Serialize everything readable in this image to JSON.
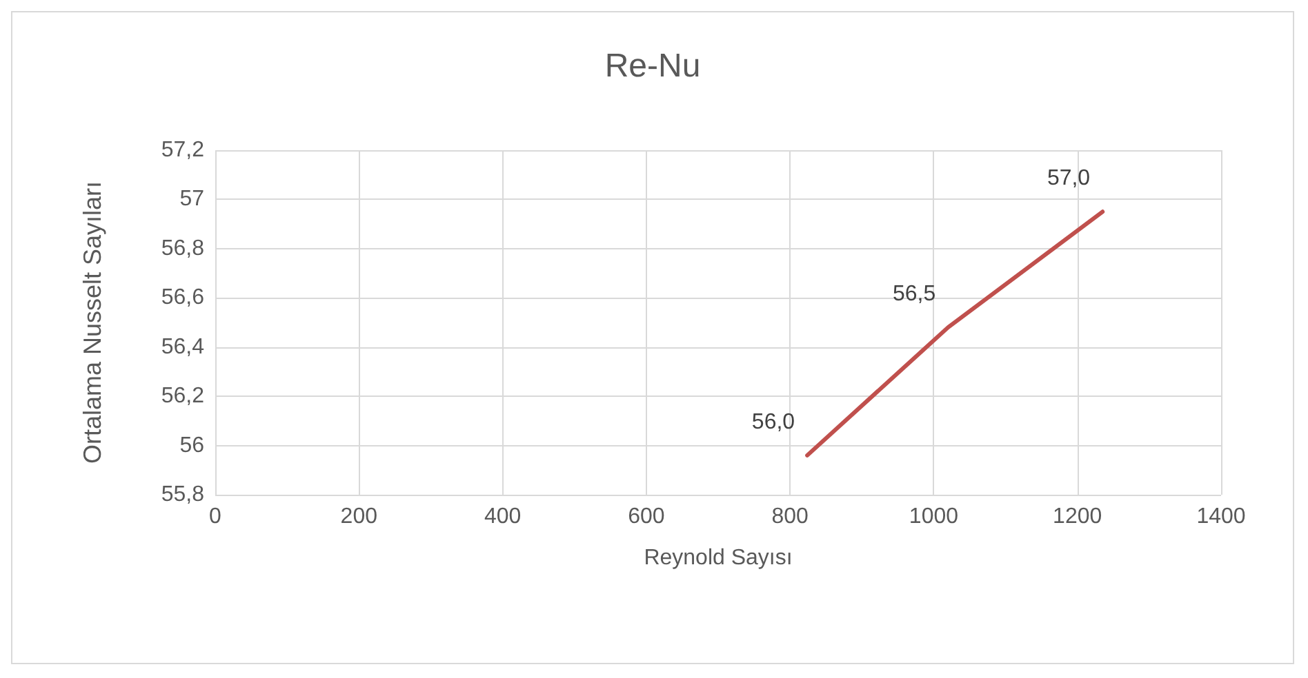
{
  "chart_data": {
    "type": "line",
    "title": "Re-Nu",
    "xlabel": "Reynold Sayısı",
    "ylabel": "Ortalama Nusselt Sayıları",
    "x": [
      824,
      1020,
      1235
    ],
    "series": [
      {
        "color": "#c0504d",
        "values": [
          55.96,
          56.48,
          56.95
        ],
        "value_labels": [
          "56,0",
          "56,5",
          "57,0"
        ]
      }
    ],
    "xlim": [
      0,
      1400
    ],
    "xticks": [
      0,
      200,
      400,
      600,
      800,
      1000,
      1200,
      1400
    ],
    "ylim": [
      55.8,
      57.2
    ],
    "yticks": [
      {
        "value": 55.8,
        "label": "55,8"
      },
      {
        "value": 56,
        "label": "56"
      },
      {
        "value": 56.2,
        "label": "56,2"
      },
      {
        "value": 56.4,
        "label": "56,4"
      },
      {
        "value": 56.6,
        "label": "56,6"
      },
      {
        "value": 56.8,
        "label": "56,8"
      },
      {
        "value": 57,
        "label": "57"
      },
      {
        "value": 57.2,
        "label": "57,2"
      }
    ],
    "grid": true,
    "marker": "none",
    "line_style": "solid"
  }
}
